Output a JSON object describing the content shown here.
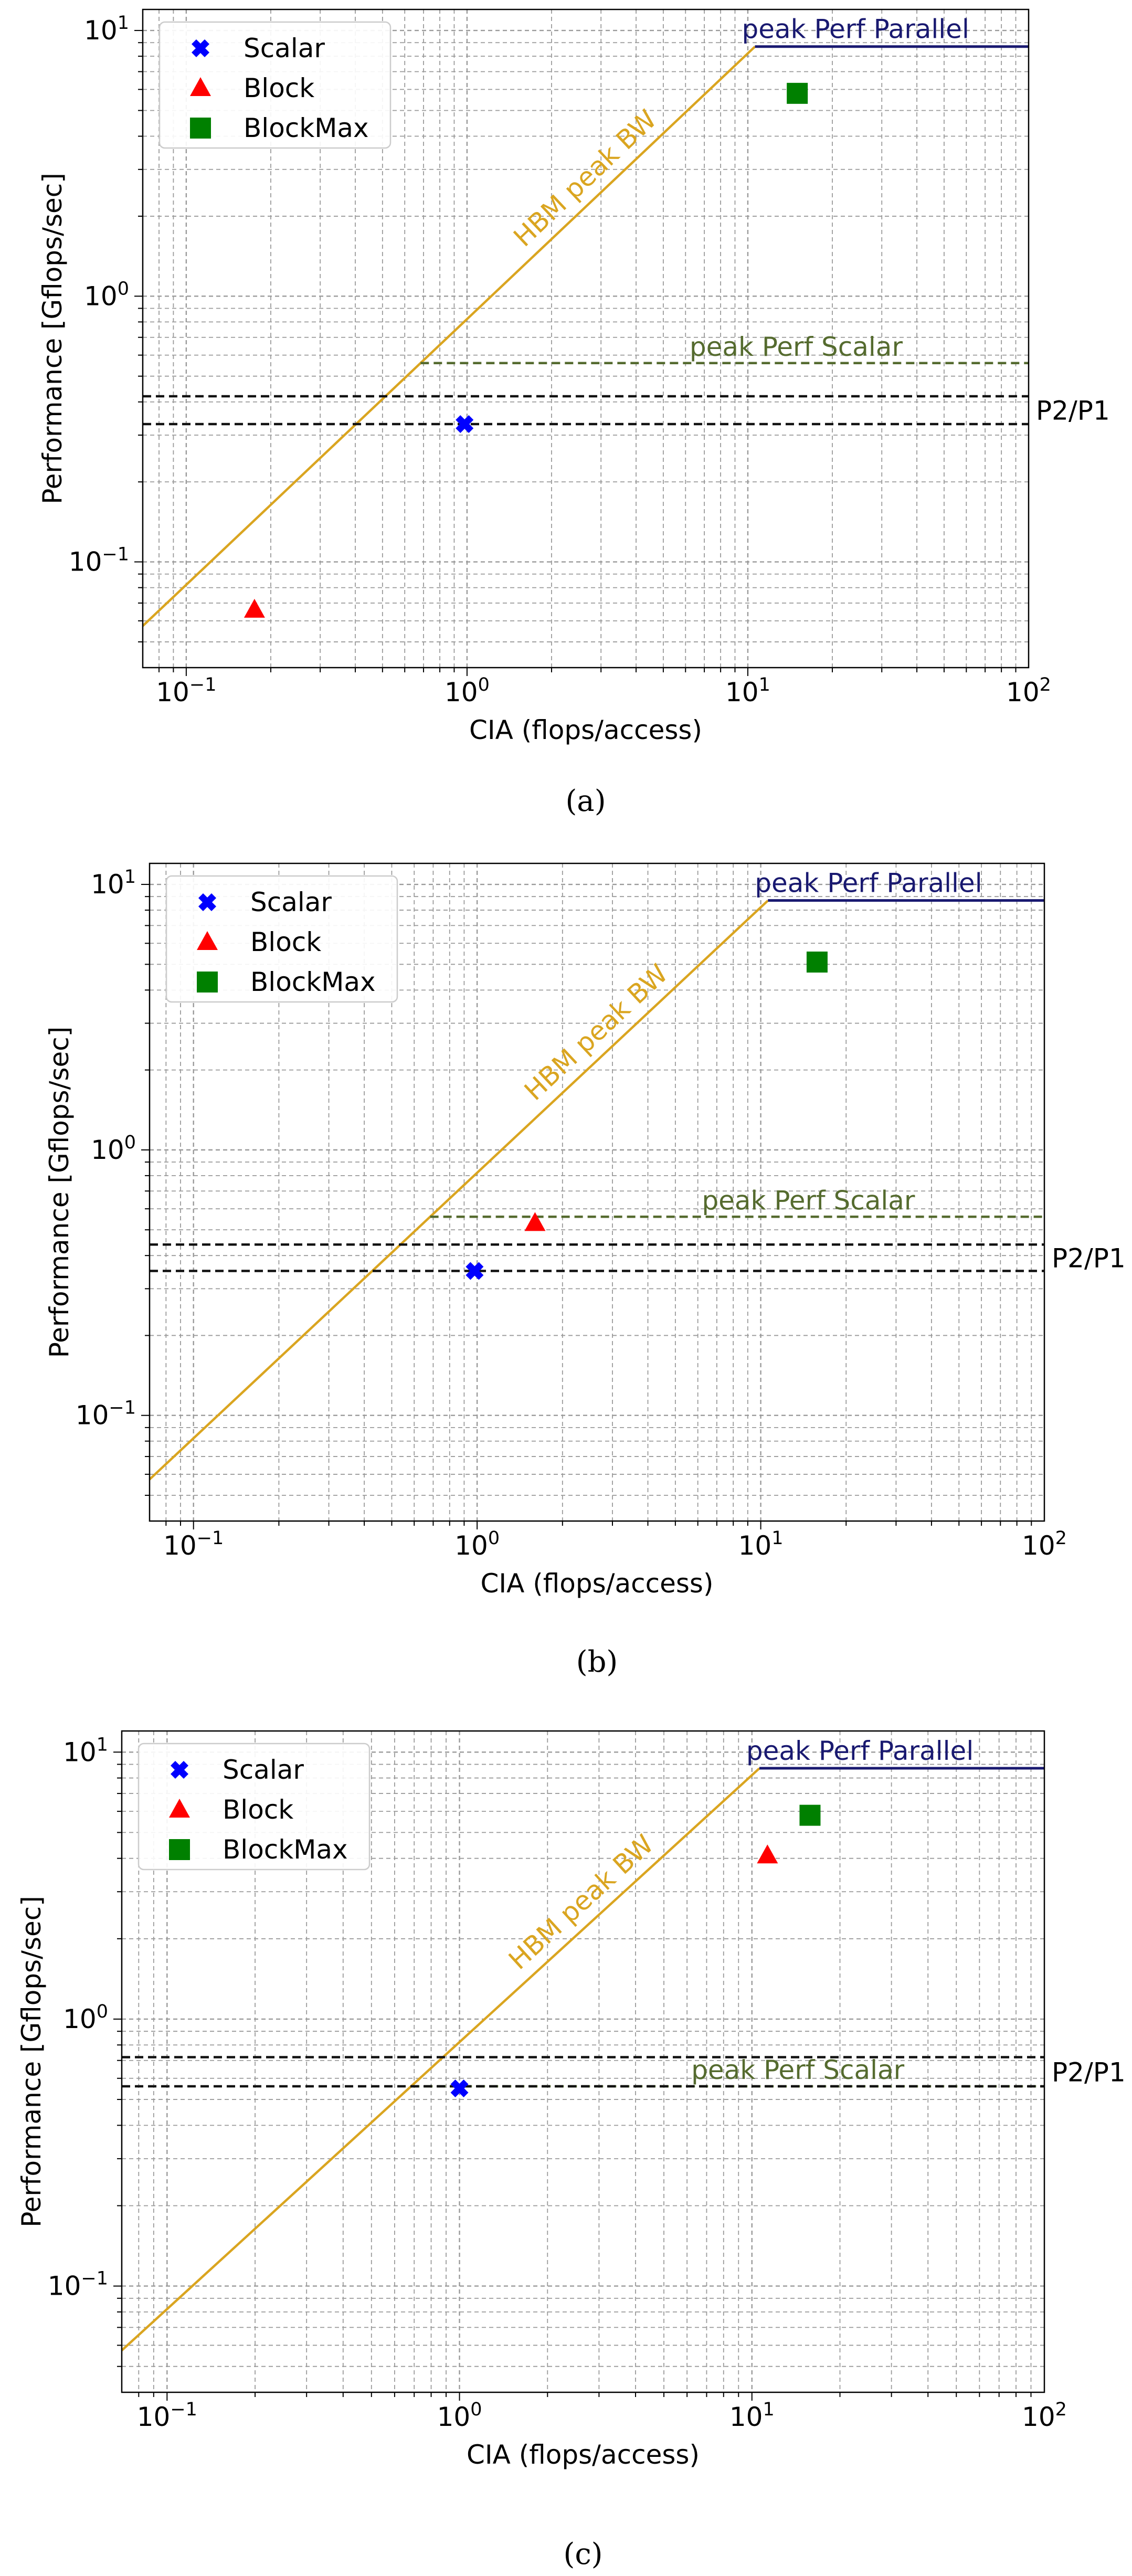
{
  "chart_data": [
    {
      "type": "scatter",
      "panel_label": "(a)",
      "xlabel": "CIA (flops/access)",
      "ylabel": "Performance [Gflops/sec]",
      "xscale": "log",
      "yscale": "log",
      "xlim": [
        0.07,
        100
      ],
      "ylim": [
        0.04,
        12
      ],
      "xticks": [
        {
          "value": 0.1,
          "base": "10",
          "exp": "−1"
        },
        {
          "value": 1,
          "base": "10",
          "exp": "0"
        },
        {
          "value": 10,
          "base": "10",
          "exp": "1"
        },
        {
          "value": 100,
          "base": "10",
          "exp": "2"
        }
      ],
      "yticks": [
        {
          "value": 0.1,
          "base": "10",
          "exp": "−1"
        },
        {
          "value": 1,
          "base": "10",
          "exp": "0"
        },
        {
          "value": 10,
          "base": "10",
          "exp": "1"
        }
      ],
      "grid": true,
      "legend_position": "top-left",
      "series": [
        {
          "name": "Scalar",
          "marker": "x",
          "color": "#0000ff",
          "x": [
            0.98
          ],
          "y": [
            0.33
          ]
        },
        {
          "name": "Block",
          "marker": "triangle",
          "color": "#ff0000",
          "x": [
            0.175
          ],
          "y": [
            0.066
          ]
        },
        {
          "name": "BlockMax",
          "marker": "square",
          "color": "#008000",
          "x": [
            15
          ],
          "y": [
            5.8
          ]
        }
      ],
      "roofline": {
        "label": "HBM peak BW",
        "color": "#daa520",
        "bandwidth": 0.82,
        "knee_x": 10.6
      },
      "peak_parallel": {
        "label": "peak Perf Parallel",
        "value": 8.7,
        "color": "#191970"
      },
      "peak_scalar": {
        "label": "peak Perf Scalar",
        "value": 0.56,
        "color": "#556b2f"
      },
      "p_lines": {
        "label": "P2/P1",
        "values": [
          0.42,
          0.33
        ]
      }
    },
    {
      "type": "scatter",
      "panel_label": "(b)",
      "xlabel": "CIA (flops/access)",
      "ylabel": "Performance [Gflops/sec]",
      "xscale": "log",
      "yscale": "log",
      "xlim": [
        0.07,
        100
      ],
      "ylim": [
        0.04,
        12
      ],
      "xticks": [
        {
          "value": 0.1,
          "base": "10",
          "exp": "−1"
        },
        {
          "value": 1,
          "base": "10",
          "exp": "0"
        },
        {
          "value": 10,
          "base": "10",
          "exp": "1"
        },
        {
          "value": 100,
          "base": "10",
          "exp": "2"
        }
      ],
      "yticks": [
        {
          "value": 0.1,
          "base": "10",
          "exp": "−1"
        },
        {
          "value": 1,
          "base": "10",
          "exp": "0"
        },
        {
          "value": 10,
          "base": "10",
          "exp": "1"
        }
      ],
      "grid": true,
      "legend_position": "top-left",
      "series": [
        {
          "name": "Scalar",
          "marker": "x",
          "color": "#0000ff",
          "x": [
            0.98
          ],
          "y": [
            0.35
          ]
        },
        {
          "name": "Block",
          "marker": "triangle",
          "color": "#ff0000",
          "x": [
            1.6
          ],
          "y": [
            0.53
          ]
        },
        {
          "name": "BlockMax",
          "marker": "square",
          "color": "#008000",
          "x": [
            15.8
          ],
          "y": [
            5.1
          ]
        }
      ],
      "roofline": {
        "label": "HBM peak BW",
        "color": "#daa520",
        "bandwidth": 0.82,
        "knee_x": 10.6
      },
      "peak_parallel": {
        "label": "peak Perf Parallel",
        "value": 8.7,
        "color": "#191970"
      },
      "peak_scalar": {
        "label": "peak Perf Scalar",
        "value": 0.56,
        "color": "#556b2f"
      },
      "p_lines": {
        "label": "P2/P1",
        "values": [
          0.44,
          0.35
        ]
      }
    },
    {
      "type": "scatter",
      "panel_label": "(c)",
      "xlabel": "CIA (flops/access)",
      "ylabel": "Performance [Gflops/sec]",
      "xscale": "log",
      "yscale": "log",
      "xlim": [
        0.07,
        100
      ],
      "ylim": [
        0.04,
        12
      ],
      "xticks": [
        {
          "value": 0.1,
          "base": "10",
          "exp": "−1"
        },
        {
          "value": 1,
          "base": "10",
          "exp": "0"
        },
        {
          "value": 10,
          "base": "10",
          "exp": "1"
        },
        {
          "value": 100,
          "base": "10",
          "exp": "2"
        }
      ],
      "yticks": [
        {
          "value": 0.1,
          "base": "10",
          "exp": "−1"
        },
        {
          "value": 1,
          "base": "10",
          "exp": "0"
        },
        {
          "value": 10,
          "base": "10",
          "exp": "1"
        }
      ],
      "grid": true,
      "legend_position": "top-left",
      "series": [
        {
          "name": "Scalar",
          "marker": "x",
          "color": "#0000ff",
          "x": [
            1.0
          ],
          "y": [
            0.55
          ]
        },
        {
          "name": "Block",
          "marker": "triangle",
          "color": "#ff0000",
          "x": [
            11.3
          ],
          "y": [
            4.1
          ]
        },
        {
          "name": "BlockMax",
          "marker": "square",
          "color": "#008000",
          "x": [
            15.8
          ],
          "y": [
            5.8
          ]
        }
      ],
      "roofline": {
        "label": "HBM peak BW",
        "color": "#daa520",
        "bandwidth": 0.82,
        "knee_x": 10.6
      },
      "peak_parallel": {
        "label": "peak Perf Parallel",
        "value": 8.7,
        "color": "#191970"
      },
      "peak_scalar": {
        "label": "peak Perf Scalar",
        "value": 0.56,
        "color": "#556b2f"
      },
      "p_lines": {
        "label": "P2/P1",
        "values": [
          0.72,
          0.56
        ]
      }
    }
  ]
}
